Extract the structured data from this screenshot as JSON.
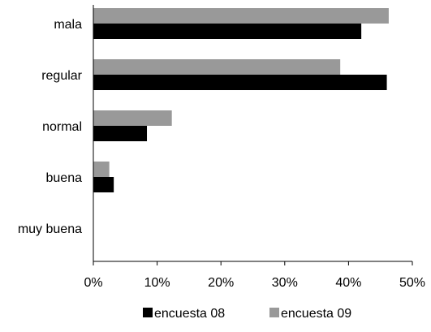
{
  "chart_data": {
    "type": "bar",
    "orientation": "horizontal",
    "categories": [
      "mala",
      "regular",
      "normal",
      "buena",
      "muy buena"
    ],
    "series": [
      {
        "name": "encuesta 09",
        "color": "#999999",
        "values": [
          46.3,
          38.7,
          12.3,
          2.5,
          0
        ]
      },
      {
        "name": "encuesta 08",
        "color": "#000000",
        "values": [
          42.0,
          46.0,
          8.4,
          3.2,
          0
        ]
      }
    ],
    "xlim": [
      0,
      50
    ],
    "x_ticks": [
      0,
      10,
      20,
      30,
      40,
      50
    ],
    "x_tick_labels": [
      "0%",
      "10%",
      "20%",
      "30%",
      "40%",
      "50%"
    ],
    "grid": false,
    "legend": {
      "placement": "bottom",
      "entries": [
        {
          "label": "encuesta 08",
          "color": "#000000"
        },
        {
          "label": "encuesta 09",
          "color": "#999999"
        }
      ]
    }
  }
}
